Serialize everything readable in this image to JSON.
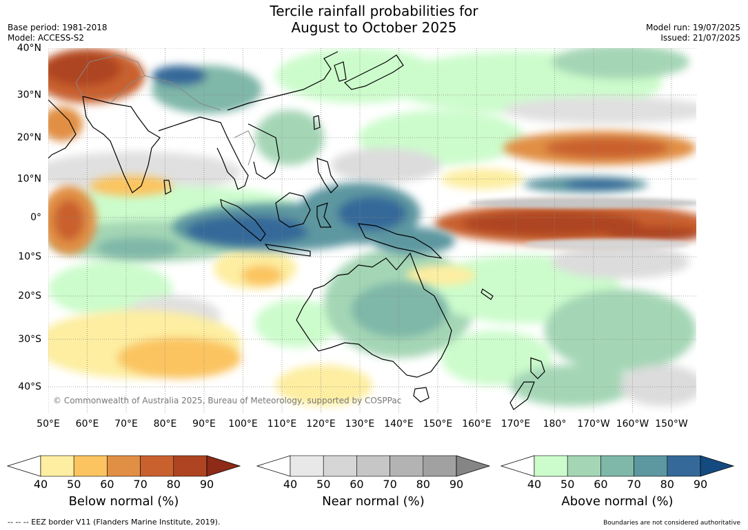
{
  "title_line1": "Tercile rainfall probabilities for",
  "title_line2": "August to October 2025",
  "base_period": "Base period: 1981-2018",
  "model": "Model: ACCESS-S2",
  "model_run": "Model run: 19/07/2025",
  "issued": "Issued: 21/07/2025",
  "copyright": "© Commonwealth of Australia 2025, Bureau of Meteorology, supported by COSPPac",
  "lat_labels": [
    "40°N",
    "30°N",
    "20°N",
    "10°N",
    "0°",
    "10°S",
    "20°S",
    "30°S",
    "40°S"
  ],
  "lon_labels": [
    "50°E",
    "60°E",
    "70°E",
    "80°E",
    "90°E",
    "100°E",
    "110°E",
    "120°E",
    "130°E",
    "140°E",
    "150°E",
    "160°E",
    "170°E",
    "180°",
    "170°W",
    "160°W",
    "150°W"
  ],
  "colorbars": [
    {
      "title": "Below normal (%)",
      "ticks": [
        "40",
        "50",
        "60",
        "70",
        "80",
        "90"
      ],
      "colors": [
        "#fdeea1",
        "#fbc461",
        "#e18f44",
        "#c9612f",
        "#ae4421"
      ],
      "under": "#ffffff",
      "over": "#8d2a18"
    },
    {
      "title": "Near normal (%)",
      "ticks": [
        "40",
        "50",
        "60",
        "70",
        "80",
        "90"
      ],
      "colors": [
        "#e8e8e8",
        "#d6d6d6",
        "#c6c6c6",
        "#b3b3b3",
        "#a1a1a1"
      ],
      "under": "#ffffff",
      "over": "#858585"
    },
    {
      "title": "Above normal (%)",
      "ticks": [
        "40",
        "50",
        "60",
        "70",
        "80",
        "90"
      ],
      "colors": [
        "#ccfccc",
        "#a4d6b5",
        "#7fb7a8",
        "#5d97a0",
        "#356999"
      ],
      "under": "#ffffff",
      "over": "#144a80"
    }
  ],
  "footer_left": "-- -- -- EEZ border V11 (Flanders Marine Institute, 2019).",
  "footer_right": "Boundaries are not considered authoritative"
}
